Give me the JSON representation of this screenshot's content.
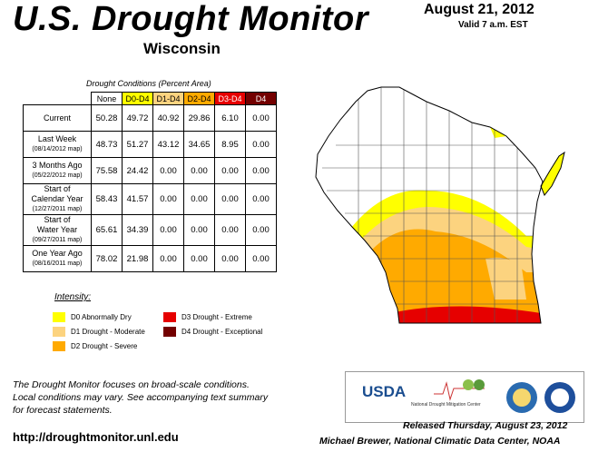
{
  "header": {
    "title": "U.S. Drought Monitor",
    "state": "Wisconsin",
    "date": "August 21, 2012",
    "valid": "Valid 7 a.m. EST"
  },
  "table": {
    "caption": "Drought Conditions (Percent Area)",
    "columns": [
      "None",
      "D0-D4",
      "D1-D4",
      "D2-D4",
      "D3-D4",
      "D4"
    ],
    "column_colors": [
      "#ffffff",
      "#ffff00",
      "#fcd37f",
      "#ffaa00",
      "#e60000",
      "#730000"
    ],
    "rows": [
      {
        "label": [
          "Current"
        ],
        "values": [
          "50.28",
          "49.72",
          "40.92",
          "29.86",
          "6.10",
          "0.00"
        ]
      },
      {
        "label": [
          "Last Week",
          "(08/14/2012 map)"
        ],
        "values": [
          "48.73",
          "51.27",
          "43.12",
          "34.65",
          "8.95",
          "0.00"
        ]
      },
      {
        "label": [
          "3 Months Ago",
          "(05/22/2012 map)"
        ],
        "values": [
          "75.58",
          "24.42",
          "0.00",
          "0.00",
          "0.00",
          "0.00"
        ]
      },
      {
        "label": [
          "Start of",
          "Calendar Year",
          "(12/27/2011 map)"
        ],
        "values": [
          "58.43",
          "41.57",
          "0.00",
          "0.00",
          "0.00",
          "0.00"
        ]
      },
      {
        "label": [
          "Start of",
          "Water Year",
          "(09/27/2011 map)"
        ],
        "values": [
          "65.61",
          "34.39",
          "0.00",
          "0.00",
          "0.00",
          "0.00"
        ]
      },
      {
        "label": [
          "One Year Ago",
          "(08/16/2011 map)"
        ],
        "values": [
          "78.02",
          "21.98",
          "0.00",
          "0.00",
          "0.00",
          "0.00"
        ]
      }
    ]
  },
  "legend": {
    "title": "Intensity:",
    "items": [
      {
        "label": "D0 Abnormally Dry",
        "color": "#ffff00"
      },
      {
        "label": "D1 Drought - Moderate",
        "color": "#fcd37f"
      },
      {
        "label": "D2 Drought - Severe",
        "color": "#ffaa00"
      },
      {
        "label": "D3 Drought - Extreme",
        "color": "#e60000"
      },
      {
        "label": "D4 Drought - Exceptional",
        "color": "#730000"
      }
    ]
  },
  "footer": {
    "note": [
      "The Drought Monitor focuses on broad-scale conditions.",
      "Local conditions may vary. See accompanying text summary",
      "for forecast statements."
    ],
    "url": "http://droughtmonitor.unl.edu",
    "logos": [
      "USDA",
      "National Drought Mitigation Center"
    ],
    "released": "Released Thursday, August 23, 2012",
    "author": "Michael Brewer, National Climatic Data Center, NOAA"
  }
}
